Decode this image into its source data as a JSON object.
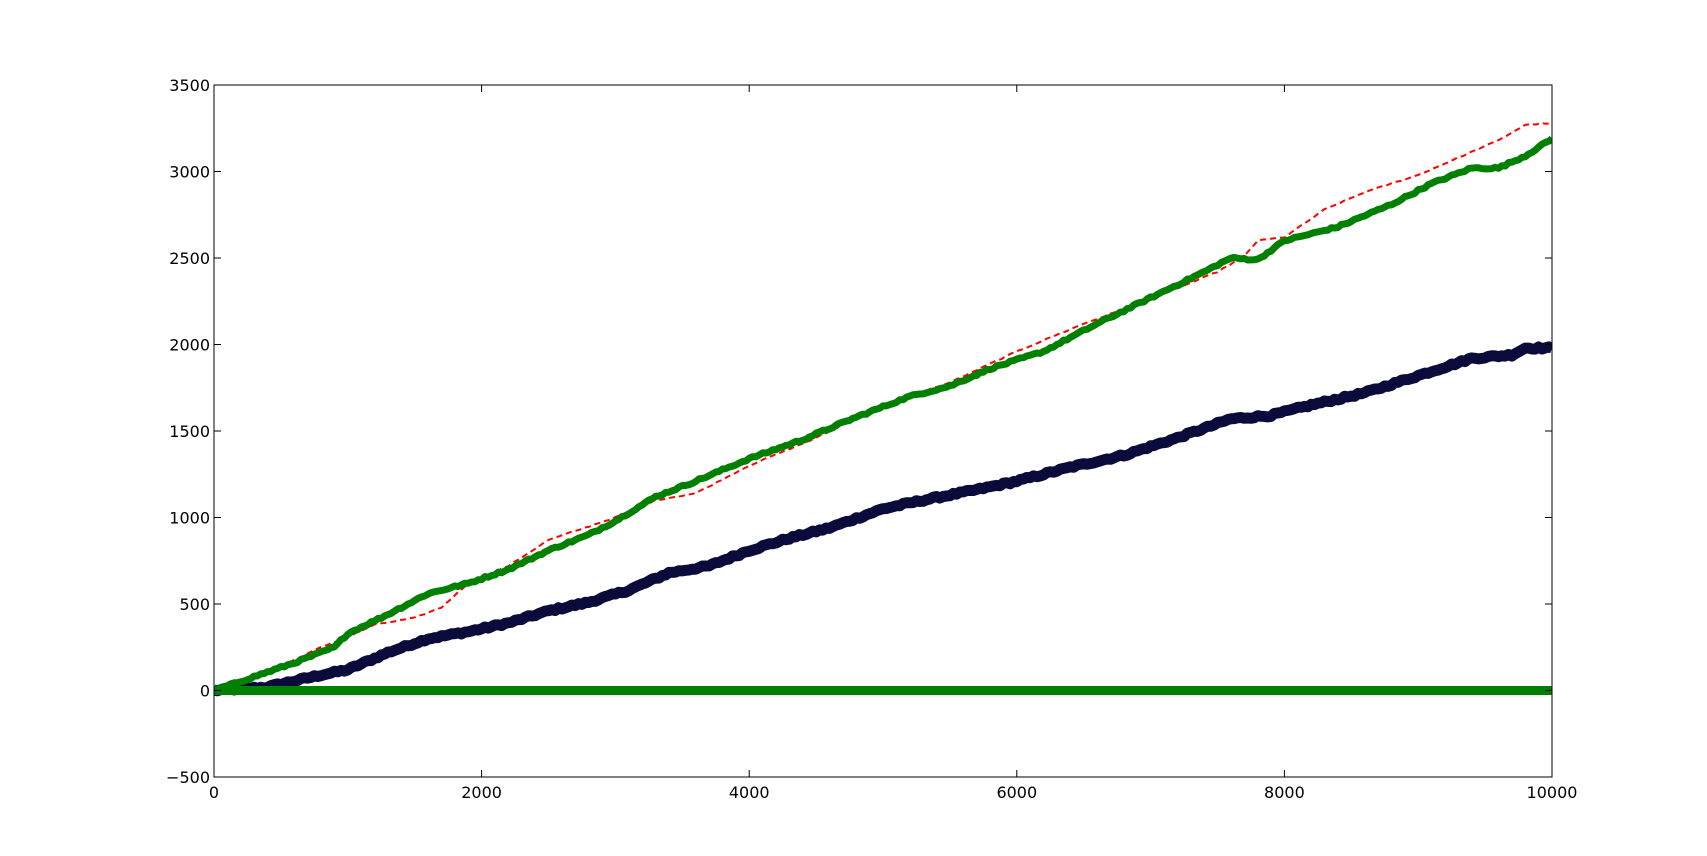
{
  "chart_data": {
    "type": "line",
    "xlim": [
      0,
      10000
    ],
    "ylim": [
      -500,
      3500
    ],
    "x_ticks": [
      0,
      2000,
      4000,
      6000,
      8000,
      10000
    ],
    "y_ticks": [
      -500,
      0,
      500,
      1000,
      1500,
      2000,
      2500,
      3000,
      3500
    ],
    "x_tick_labels": [
      "0",
      "2000",
      "4000",
      "6000",
      "8000",
      "10000"
    ],
    "y_tick_labels": [
      "−500",
      "0",
      "500",
      "1000",
      "1500",
      "2000",
      "2500",
      "3000",
      "3500"
    ],
    "grid": false,
    "legend": "none",
    "series": [
      {
        "style": "dashed-line",
        "color": "#ff0000",
        "x": [
          0,
          500,
          800,
          1000,
          1200,
          1500,
          1700,
          1900,
          2200,
          2500,
          3000,
          3300,
          3600,
          4000,
          4500,
          5000,
          5500,
          6000,
          6500,
          7000,
          7500,
          7700,
          7800,
          8000,
          8300,
          8600,
          9000,
          9300,
          9600,
          9800,
          10000
        ],
        "y": [
          0,
          140,
          250,
          310,
          380,
          420,
          480,
          620,
          720,
          870,
          1000,
          1100,
          1140,
          1300,
          1460,
          1650,
          1780,
          1960,
          2120,
          2260,
          2420,
          2510,
          2600,
          2620,
          2780,
          2880,
          2980,
          3080,
          3180,
          3270,
          3280
        ]
      },
      {
        "style": "thick-line",
        "color": "#008000",
        "x": [
          0,
          300,
          600,
          900,
          1000,
          1300,
          1600,
          1750,
          1900,
          2200,
          2500,
          2800,
          3000,
          3300,
          3600,
          4000,
          4400,
          4800,
          5200,
          5500,
          5800,
          6200,
          6600,
          7000,
          7400,
          7600,
          7800,
          8000,
          8400,
          8800,
          9100,
          9400,
          9600,
          9800,
          10000
        ],
        "y": [
          0,
          80,
          160,
          250,
          330,
          440,
          560,
          590,
          620,
          700,
          810,
          900,
          980,
          1120,
          1210,
          1340,
          1450,
          1580,
          1700,
          1760,
          1860,
          1960,
          2120,
          2270,
          2420,
          2500,
          2490,
          2600,
          2680,
          2810,
          2930,
          3020,
          3020,
          3090,
          3190
        ]
      },
      {
        "style": "thick-line",
        "color": "#0b0b3b",
        "x": [
          0,
          400,
          800,
          1000,
          1300,
          1600,
          1900,
          2200,
          2500,
          2800,
          3100,
          3400,
          3700,
          4000,
          4300,
          4600,
          5000,
          5300,
          5700,
          6000,
          6400,
          6800,
          7200,
          7600,
          7900,
          8200,
          8600,
          9000,
          9400,
          9700,
          9800,
          10000
        ],
        "y": [
          0,
          20,
          90,
          120,
          220,
          300,
          340,
          390,
          460,
          510,
          580,
          680,
          720,
          810,
          880,
          940,
          1050,
          1100,
          1160,
          1210,
          1290,
          1360,
          1460,
          1570,
          1590,
          1650,
          1720,
          1820,
          1920,
          1940,
          1980,
          1980
        ]
      },
      {
        "style": "thick-line",
        "color": "#008000",
        "x": [
          0,
          10000
        ],
        "y": [
          0,
          0
        ]
      }
    ]
  }
}
